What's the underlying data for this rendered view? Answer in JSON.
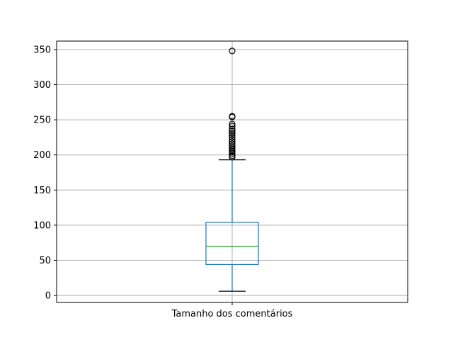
{
  "chart_data": {
    "type": "box",
    "xlabel": "",
    "ylabel": "",
    "categories": [
      "Tamanho dos comentários"
    ],
    "ylim": [
      -10,
      362
    ],
    "yticks": [
      0,
      50,
      100,
      150,
      200,
      250,
      300,
      350
    ],
    "grid": true,
    "boxes": [
      {
        "category": "Tamanho dos comentários",
        "whisker_low": 6,
        "q1": 44,
        "median": 70,
        "q3": 104,
        "whisker_high": 193,
        "outliers": [
          197,
          199,
          202,
          204,
          206,
          208,
          210,
          213,
          216,
          219,
          222,
          225,
          228,
          231,
          234,
          237,
          241,
          244,
          254,
          255,
          348
        ]
      }
    ],
    "colors": {
      "box": "#1f77b4",
      "median": "#2ca02c",
      "whisker": "#1f77b4",
      "cap": "#000000",
      "flier": "#000000",
      "grid": "#b0b0b0"
    }
  }
}
